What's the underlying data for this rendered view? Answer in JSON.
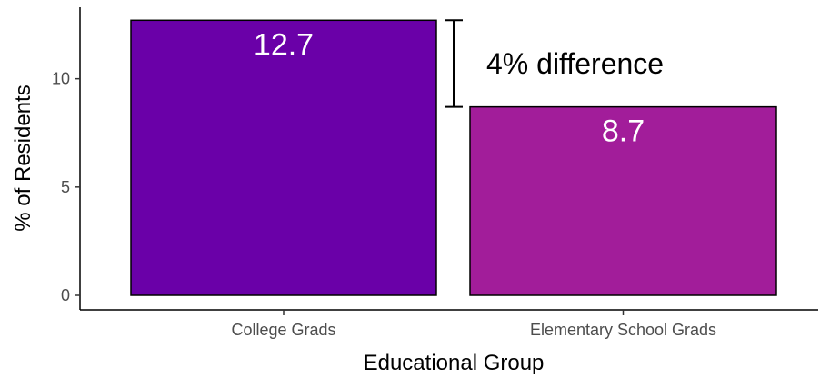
{
  "chart_data": {
    "type": "bar",
    "title": "",
    "xlabel": "Educational Group",
    "ylabel": "% of Residents",
    "categories": [
      "College Grads",
      "Elementary School Grads"
    ],
    "values": [
      12.7,
      8.7
    ],
    "data_labels": [
      "12.7",
      "8.7"
    ],
    "bar_colors": [
      "#6a00a8",
      "#a21d9a"
    ],
    "yticks": [
      0,
      5,
      10
    ],
    "ytick_labels": [
      "0",
      "5",
      "10"
    ],
    "ylim": [
      0,
      13.3
    ],
    "grid": false,
    "legend": "none",
    "annotation": {
      "text": "4% difference",
      "from": 8.7,
      "to": 12.7
    }
  }
}
